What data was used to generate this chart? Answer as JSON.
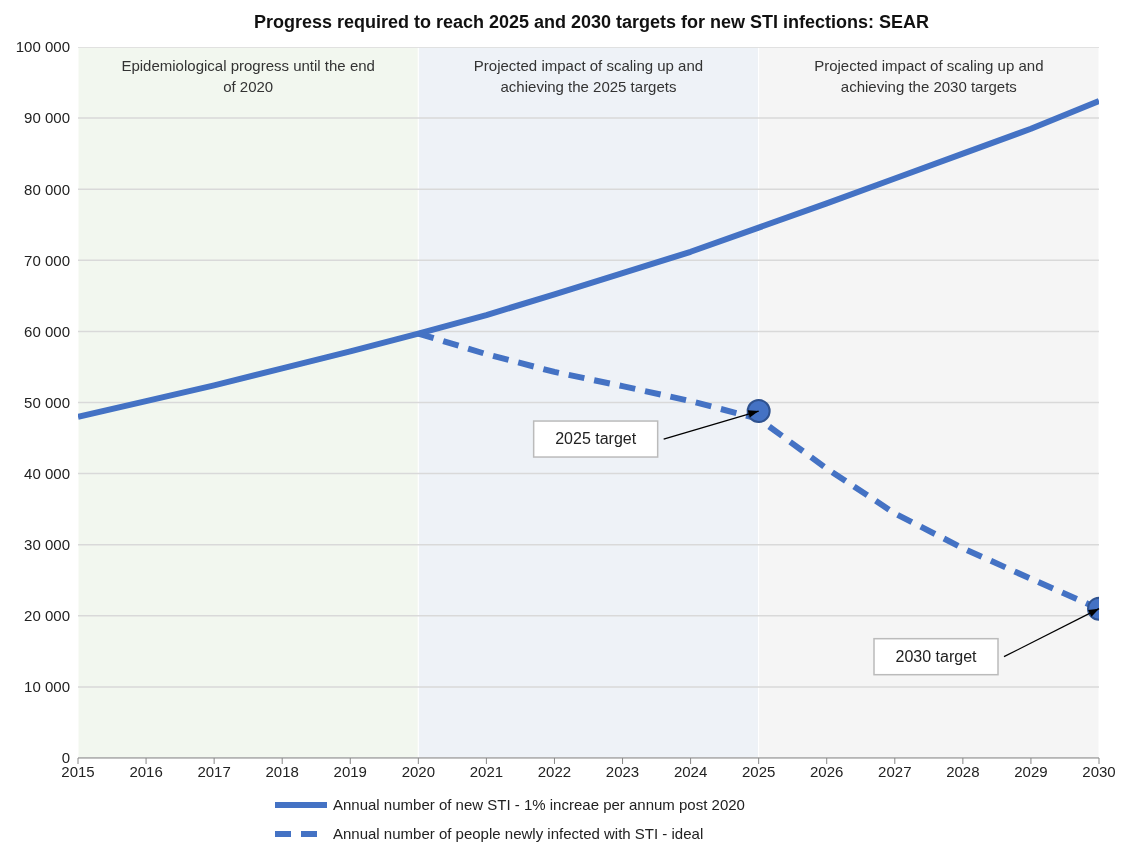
{
  "chart_data": {
    "type": "line",
    "title": "Progress required to reach 2025 and 2030 targets for new STI infections: SEAR",
    "x": [
      2015,
      2016,
      2017,
      2018,
      2019,
      2020,
      2021,
      2022,
      2023,
      2024,
      2025,
      2026,
      2027,
      2028,
      2029,
      2030
    ],
    "series": [
      {
        "name": "Annual number of new STI  - 1% increae per annum post 2020",
        "color": "#4472c4",
        "line_style": "solid",
        "values": [
          48000,
          50200,
          52400,
          54800,
          57200,
          59700,
          62300,
          65200,
          68200,
          71200,
          74600,
          78000,
          81500,
          85000,
          88500,
          92400
        ]
      },
      {
        "name": "Annual number of people newly infected with STI - ideal",
        "color": "#4472c4",
        "line_style": "dashed",
        "x": [
          2020,
          2021,
          2022,
          2023,
          2024,
          2025,
          2026,
          2027,
          2028,
          2029,
          2030
        ],
        "values": [
          59700,
          56800,
          54300,
          52300,
          50200,
          47700,
          40700,
          34400,
          29500,
          25200,
          21000
        ]
      },
      {
        "type": "scatter",
        "color": "#4472c4",
        "marker": "circle",
        "x": [
          2025,
          2030
        ],
        "values": [
          48800,
          21000
        ]
      }
    ],
    "xlim": [
      2015,
      2030
    ],
    "xticks": [
      2015,
      2016,
      2017,
      2018,
      2019,
      2020,
      2021,
      2022,
      2023,
      2024,
      2025,
      2026,
      2027,
      2028,
      2029,
      2030
    ],
    "ylim": [
      0,
      100000
    ],
    "yticks": [
      0,
      {
        "value": 10000,
        "label": "10 000"
      },
      {
        "value": 20000,
        "label": "20 000"
      },
      {
        "value": 30000,
        "label": "30 000"
      },
      {
        "value": 40000,
        "label": "40 000"
      },
      {
        "value": 50000,
        "label": "50 000"
      },
      {
        "value": 60000,
        "label": "60 000"
      },
      {
        "value": 70000,
        "label": "70 000"
      },
      {
        "value": 80000,
        "label": "80 000"
      },
      {
        "value": 90000,
        "label": "90 000"
      },
      {
        "value": 100000,
        "label": "100 000"
      }
    ],
    "grid": "y",
    "legend": "bottom",
    "marker": "none",
    "bands": [
      {
        "axis": "x",
        "from": 2015,
        "to": 2020,
        "label": "Epidemiological progress until the end of 2020",
        "color": "#f2f7ef"
      },
      {
        "axis": "x",
        "from": 2020,
        "to": 2025,
        "label": "Projected impact of scaling up and achieving the 2025 targets",
        "color": "#eef2f7"
      },
      {
        "axis": "x",
        "from": 2025,
        "to": 2030,
        "label": "Projected impact of scaling up and achieving the 2030 targets",
        "color": "#f5f5f5"
      }
    ],
    "annotations": [
      "2025 target",
      "2030  target"
    ]
  }
}
